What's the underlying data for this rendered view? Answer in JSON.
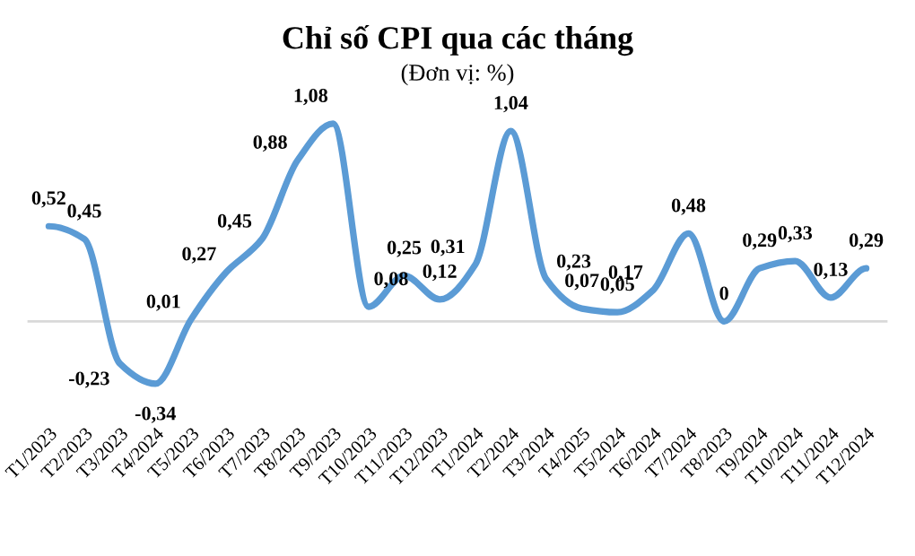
{
  "chart_data": {
    "type": "line",
    "title": "Chỉ số CPI qua các tháng",
    "subtitle": "(Đơn vị: %)",
    "categories": [
      "T1/2023",
      "T2/2023",
      "T3/2023",
      "T4/2024",
      "T5/2023",
      "T6/2023",
      "T7/2023",
      "T8/2023",
      "T9/2023",
      "T10/2023",
      "T11/2023",
      "T12/2023",
      "T1/2024",
      "T2/2024",
      "T3/2024",
      "T4/2025",
      "T5/2024",
      "T6/2024",
      "T7/2024",
      "T8/2023",
      "T9/2024",
      "T10/2024",
      "T11/2024",
      "T12/2024"
    ],
    "series": [
      {
        "color": "#5b9bd5",
        "values": [
          0.52,
          0.45,
          -0.23,
          -0.34,
          0.01,
          0.27,
          0.45,
          0.88,
          1.08,
          0.08,
          0.25,
          0.12,
          0.31,
          1.04,
          0.23,
          0.07,
          0.05,
          0.17,
          0.48,
          0,
          0.29,
          0.33,
          0.13,
          0.29
        ],
        "value_labels": [
          "0,52",
          "0,45",
          "-0,23",
          "-0,34",
          "0,01",
          "0,27",
          "0,45",
          "0,88",
          "1,08",
          "0,08",
          "0,25",
          "0,12",
          "0,31",
          "1,04",
          "0,23",
          "0,07",
          "0,05",
          "0,17",
          "0,48",
          "0",
          "0,29",
          "0,33",
          "0,13",
          "0,29"
        ]
      }
    ],
    "ref_lines": [
      {
        "axis": "y",
        "value": 0,
        "color": "#d9d9d9"
      }
    ],
    "grid": false,
    "marker": "none",
    "line_style": "solid"
  }
}
